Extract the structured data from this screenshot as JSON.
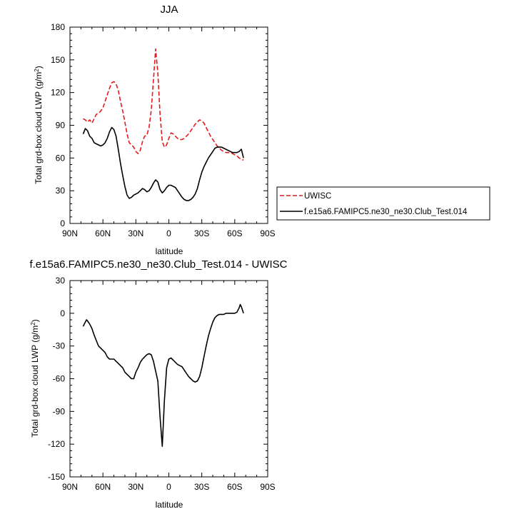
{
  "chart_data": [
    {
      "type": "line",
      "title": "JJA",
      "xlabel": "latitude",
      "ylabel": "Total grd-box cloud LWP (g/m",
      "ylabel_sup": "2",
      "ylabel_close": ")",
      "xlim": [
        90,
        -90
      ],
      "ylim": [
        0,
        180
      ],
      "xticks": [
        90,
        60,
        30,
        0,
        -30,
        -60,
        -90
      ],
      "xtick_labels": [
        "90N",
        "60N",
        "30N",
        "0",
        "30S",
        "60S",
        "90S"
      ],
      "yticks": [
        0,
        30,
        60,
        90,
        120,
        150,
        180
      ],
      "ytick_labels": [
        "0",
        "30",
        "60",
        "90",
        "120",
        "150",
        "180"
      ],
      "legend_position": "right",
      "series": [
        {
          "name": "UWISC",
          "color": "#e41a1c",
          "dash": true,
          "x": [
            78,
            76,
            74,
            72,
            70,
            68,
            66,
            64,
            62,
            60,
            58,
            56,
            54,
            52,
            50,
            48,
            46,
            44,
            42,
            40,
            38,
            36,
            34,
            32,
            30,
            28,
            26,
            24,
            22,
            20,
            18,
            16,
            14,
            12,
            10,
            8,
            6,
            4,
            2,
            0,
            -2,
            -4,
            -6,
            -8,
            -10,
            -12,
            -14,
            -16,
            -18,
            -20,
            -22,
            -24,
            -26,
            -28,
            -30,
            -32,
            -34,
            -36,
            -38,
            -40,
            -42,
            -44,
            -46,
            -48,
            -50,
            -52,
            -54,
            -56,
            -58,
            -60,
            -62,
            -64,
            -66,
            -68
          ],
          "y": [
            96,
            95,
            93,
            95,
            92,
            96,
            100,
            101,
            103,
            106,
            112,
            118,
            124,
            129,
            130,
            128,
            122,
            112,
            103,
            93,
            82,
            74,
            72,
            70,
            66,
            64,
            67,
            75,
            80,
            81,
            88,
            104,
            132,
            160,
            138,
            100,
            75,
            70,
            72,
            78,
            83,
            82,
            80,
            78,
            77,
            77,
            78,
            80,
            82,
            85,
            88,
            91,
            93,
            95,
            94,
            92,
            88,
            84,
            80,
            77,
            74,
            71,
            69,
            67,
            66,
            65,
            65,
            65,
            64,
            63,
            62,
            60,
            59,
            58
          ]
        },
        {
          "name": "f.e15a6.FAMIPC5.ne30_ne30.Club_Test.014",
          "color": "#000000",
          "dash": false,
          "x": [
            78,
            76,
            74,
            72,
            70,
            68,
            66,
            64,
            62,
            60,
            58,
            56,
            54,
            52,
            50,
            48,
            46,
            44,
            42,
            40,
            38,
            36,
            34,
            32,
            30,
            28,
            26,
            24,
            22,
            20,
            18,
            16,
            14,
            12,
            10,
            8,
            6,
            4,
            2,
            0,
            -2,
            -4,
            -6,
            -8,
            -10,
            -12,
            -14,
            -16,
            -18,
            -20,
            -22,
            -24,
            -26,
            -28,
            -30,
            -32,
            -34,
            -36,
            -38,
            -40,
            -42,
            -44,
            -46,
            -48,
            -50,
            -52,
            -54,
            -56,
            -58,
            -60,
            -62,
            -64,
            -66,
            -68
          ],
          "y": [
            82,
            87,
            85,
            80,
            78,
            74,
            73,
            72,
            71,
            72,
            74,
            78,
            84,
            88,
            86,
            80,
            68,
            55,
            44,
            34,
            26,
            23,
            24,
            26,
            27,
            28,
            30,
            32,
            31,
            29,
            30,
            33,
            37,
            40,
            38,
            31,
            28,
            30,
            33,
            35,
            35,
            34,
            33,
            30,
            27,
            24,
            22,
            21,
            21,
            22,
            24,
            27,
            32,
            40,
            47,
            52,
            56,
            60,
            63,
            66,
            69,
            70,
            70,
            70,
            69,
            68,
            67,
            66,
            65,
            65,
            65,
            66,
            68,
            60
          ]
        }
      ]
    },
    {
      "type": "line",
      "title": "f.e15a6.FAMIPC5.ne30_ne30.Club_Test.014 - UWISC",
      "xlabel": "latitude",
      "ylabel": "Total grd-box cloud LWP (g/m",
      "ylabel_sup": "2",
      "ylabel_close": ")",
      "xlim": [
        90,
        -90
      ],
      "ylim": [
        -150,
        30
      ],
      "xticks": [
        90,
        60,
        30,
        0,
        -30,
        -60,
        -90
      ],
      "xtick_labels": [
        "90N",
        "60N",
        "30N",
        "0",
        "30S",
        "60S",
        "90S"
      ],
      "yticks": [
        -150,
        -120,
        -90,
        -60,
        -30,
        0,
        30
      ],
      "ytick_labels": [
        "-150",
        "-120",
        "-90",
        "-60",
        "-30",
        "0",
        "30"
      ],
      "series": [
        {
          "color": "#000000",
          "dash": false,
          "x": [
            78,
            76,
            75,
            74,
            72,
            70,
            68,
            66,
            64,
            62,
            60,
            58,
            56,
            54,
            52,
            50,
            48,
            46,
            44,
            42,
            40,
            38,
            36,
            34,
            32,
            30,
            28,
            26,
            24,
            22,
            20,
            18,
            16,
            14,
            12,
            10,
            8,
            6,
            4,
            2,
            0,
            -2,
            -4,
            -6,
            -8,
            -10,
            -12,
            -14,
            -16,
            -18,
            -20,
            -22,
            -24,
            -26,
            -28,
            -30,
            -32,
            -34,
            -36,
            -38,
            -40,
            -42,
            -44,
            -46,
            -48,
            -50,
            -52,
            -54,
            -56,
            -58,
            -60,
            -62,
            -63,
            -64,
            -65,
            -66,
            -67,
            -68
          ],
          "y": [
            -12,
            -8,
            -6,
            -7,
            -10,
            -14,
            -20,
            -25,
            -30,
            -32,
            -34,
            -36,
            -40,
            -42,
            -42,
            -42,
            -44,
            -46,
            -48,
            -50,
            -54,
            -56,
            -58,
            -60,
            -60,
            -54,
            -50,
            -45,
            -42,
            -40,
            -38,
            -37,
            -38,
            -44,
            -53,
            -62,
            -95,
            -122,
            -80,
            -50,
            -42,
            -41,
            -43,
            -45,
            -47,
            -48,
            -49,
            -52,
            -55,
            -58,
            -60,
            -62,
            -63,
            -62,
            -58,
            -50,
            -40,
            -30,
            -21,
            -14,
            -8,
            -4,
            -2,
            -1,
            -1,
            -1,
            0,
            0,
            0,
            0,
            0,
            1,
            3,
            5,
            8,
            6,
            3,
            0
          ]
        }
      ]
    }
  ]
}
